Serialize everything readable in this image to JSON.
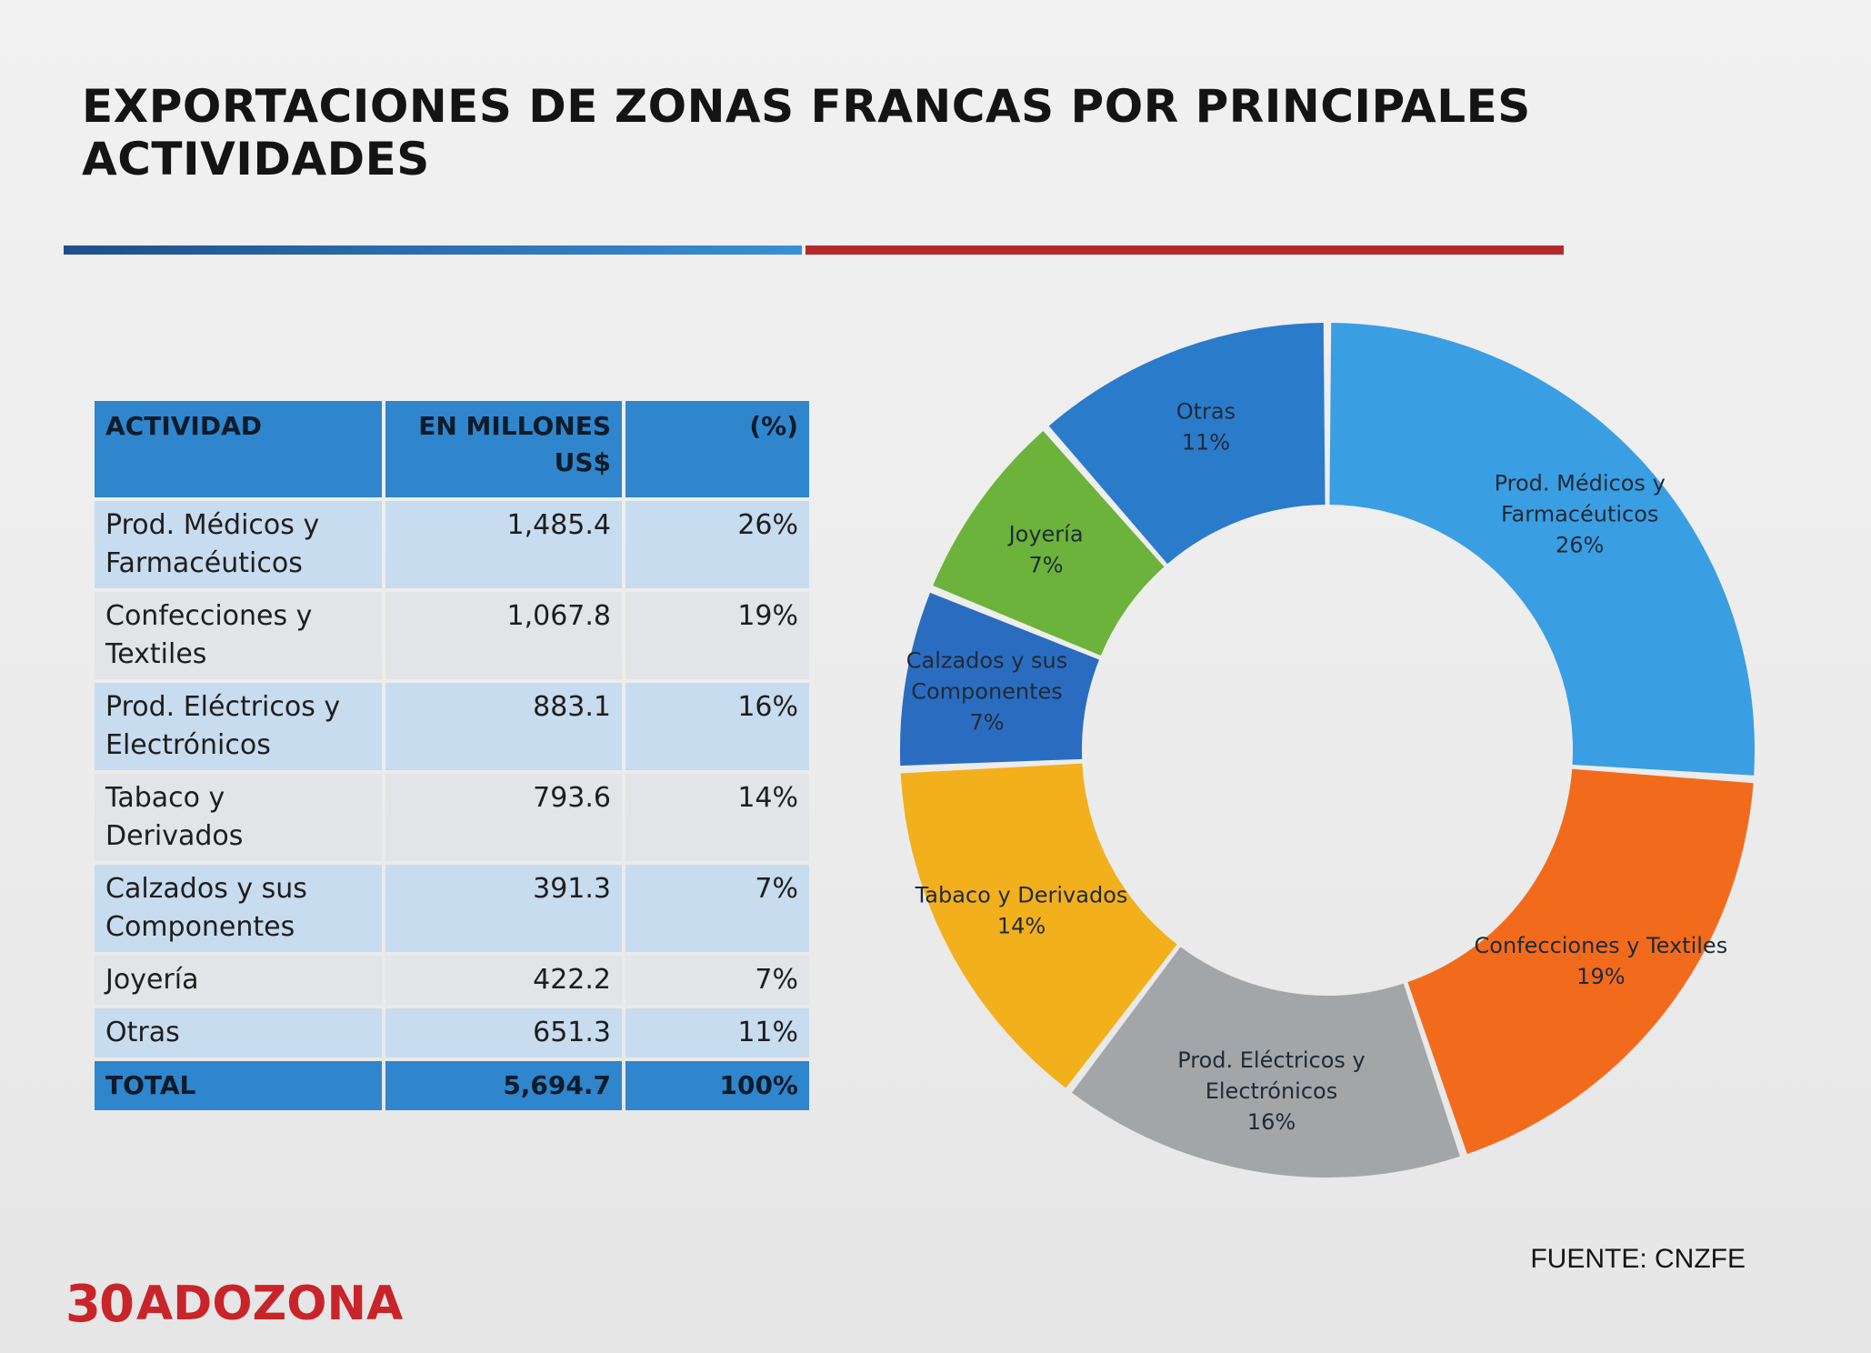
{
  "slide": {
    "title_line1": "EXPORTACIONES DE ZONAS FRANCAS POR PRINCIPALES",
    "title_line2": "ACTIVIDADES",
    "source": "FUENTE: CNZFE",
    "logo_number": "30",
    "logo_text": "ADOZONA",
    "colors": {
      "accent_blue": "#2f86cc",
      "accent_red": "#b5292b",
      "logo_red": "#c8242a"
    }
  },
  "table": {
    "headers": {
      "activity": "ACTIVIDAD",
      "amount": "EN MILLONES US$",
      "percent": "(%)"
    },
    "rows": [
      {
        "activity": "Prod. Médicos y Farmacéuticos",
        "amount": "1,485.4",
        "percent": "26%"
      },
      {
        "activity": "Confecciones y Textiles",
        "amount": "1,067.8",
        "percent": "19%"
      },
      {
        "activity": "Prod. Eléctricos y Electrónicos",
        "amount": "883.1",
        "percent": "16%"
      },
      {
        "activity": "Tabaco y Derivados",
        "amount": "793.6",
        "percent": "14%"
      },
      {
        "activity": "Calzados y sus Componentes",
        "amount": "391.3",
        "percent": "7%"
      },
      {
        "activity": "Joyería",
        "amount": "422.2",
        "percent": "7%"
      },
      {
        "activity": "Otras",
        "amount": "651.3",
        "percent": "11%"
      }
    ],
    "total": {
      "activity": "TOTAL",
      "amount": "5,694.7",
      "percent": "100%"
    }
  },
  "chart_data": {
    "type": "pie",
    "donut": true,
    "legend": "none",
    "slices": [
      {
        "label_lines": [
          "Prod. Médicos y",
          "Farmacéuticos"
        ],
        "percent_label": "26%",
        "value": 1485.4,
        "color": "#3a9ee2"
      },
      {
        "label_lines": [
          "Confecciones y Textiles"
        ],
        "percent_label": "19%",
        "value": 1067.8,
        "color": "#f26b1d"
      },
      {
        "label_lines": [
          "Prod. Eléctricos y",
          "Electrónicos"
        ],
        "percent_label": "16%",
        "value": 883.1,
        "color": "#a3a6a8"
      },
      {
        "label_lines": [
          "Tabaco y Derivados"
        ],
        "percent_label": "14%",
        "value": 793.6,
        "color": "#f2b01c"
      },
      {
        "label_lines": [
          "Calzados y sus",
          "Componentes"
        ],
        "percent_label": "7%",
        "value": 391.3,
        "color": "#2a6dc0"
      },
      {
        "label_lines": [
          "Joyería"
        ],
        "percent_label": "7%",
        "value": 422.2,
        "color": "#6bb33a"
      },
      {
        "label_lines": [
          "Otras"
        ],
        "percent_label": "11%",
        "value": 651.3,
        "color": "#2b7bcb"
      }
    ]
  }
}
